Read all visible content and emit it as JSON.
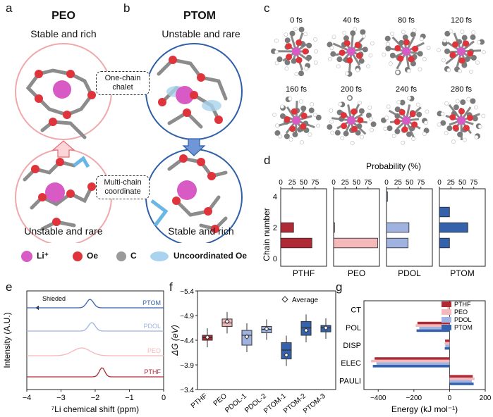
{
  "panel_labels": {
    "a": "a",
    "b": "b",
    "c": "c",
    "d": "d",
    "e": "e",
    "f": "f",
    "g": "g"
  },
  "panel_a": {
    "title": "PEO",
    "top_caption": "Stable and rich",
    "bottom_caption": "Unstable and rare"
  },
  "panel_b": {
    "title": "PTOM",
    "top_caption": "Unstable and rare",
    "bottom_caption": "Stable and rich"
  },
  "middle_labels": {
    "one_chain": "One-chain chalet",
    "multi_chain": "Multi-chain coordinate"
  },
  "legend_ab": {
    "li": "Li⁺",
    "oe": "Oe",
    "c": "C",
    "uncoord": "Uncoordinated Oe"
  },
  "colors": {
    "li": "#d85ac4",
    "oe": "#e0343c",
    "c": "#9a9a9a",
    "uncoord": "#a9d3ee",
    "peo_circle": "#f0a8ad",
    "ptom_circle": "#2e5fa8",
    "pthf": "#b02a35",
    "peo": "#f5b8bb",
    "pdol": "#9fb2e0",
    "ptom": "#3462ad"
  },
  "panel_c": {
    "times": [
      "0 fs",
      "40 fs",
      "80 fs",
      "120 fs",
      "160 fs",
      "200 fs",
      "240 fs",
      "280 fs"
    ]
  },
  "chart_data": [
    {
      "id": "d",
      "type": "bar",
      "title": "Probability (%)",
      "ylabel": "Chain number",
      "yticks": [
        "0",
        "2",
        "4"
      ],
      "xticks": [
        "0",
        "25",
        "50",
        "75"
      ],
      "xlim": [
        0,
        100
      ],
      "categories": [
        0,
        1,
        2,
        3,
        4
      ],
      "series": [
        {
          "name": "PTHF",
          "values": [
            0,
            68,
            28,
            0,
            0
          ]
        },
        {
          "name": "PEO",
          "values": [
            0,
            96,
            2,
            0,
            0
          ]
        },
        {
          "name": "PDOL",
          "values": [
            0,
            47,
            49,
            0,
            2
          ]
        },
        {
          "name": "PTOM",
          "values": [
            0,
            22,
            62,
            22,
            0
          ]
        }
      ]
    },
    {
      "id": "e",
      "type": "line",
      "xlabel": "⁷Li chemical shift (ppm)",
      "ylabel": "Intensity (A.U.)",
      "xlim": [
        -4,
        0
      ],
      "xticks": [
        "−4",
        "−3",
        "−2",
        "−1",
        "0"
      ],
      "arrow_label": "Shieded",
      "series": [
        {
          "name": "PTOM",
          "peak": -2.15
        },
        {
          "name": "PDOL",
          "peak": -2.1
        },
        {
          "name": "PEO",
          "peak": -2.4
        },
        {
          "name": "PTHF",
          "peak": -1.8
        }
      ]
    },
    {
      "id": "f",
      "type": "box",
      "ylabel": "ΔG (eV)",
      "ylim": [
        -3.4,
        -5.4
      ],
      "yticks": [
        "−5.4",
        "−4.9",
        "−4.4",
        "−3.9",
        "−3.4"
      ],
      "legend": "Average",
      "categories": [
        "PTHF",
        "PEO",
        "PDOL-1",
        "PDOL-2",
        "PTOM-1",
        "PTOM-2",
        "PTOM-3"
      ],
      "medians": [
        -4.45,
        -4.75,
        -4.5,
        -4.62,
        -4.2,
        -4.65,
        -4.65
      ],
      "q1": [
        -4.4,
        -4.68,
        -4.3,
        -4.55,
        -4.02,
        -4.5,
        -4.57
      ],
      "q3": [
        -4.5,
        -4.83,
        -4.6,
        -4.68,
        -4.35,
        -4.78,
        -4.7
      ],
      "means": [
        -4.46,
        -4.78,
        -4.47,
        -4.63,
        -4.1,
        -4.6,
        -4.65
      ]
    },
    {
      "id": "g",
      "type": "hbar",
      "xlabel": "Energy (kJ mol⁻¹)",
      "xlim": [
        -480,
        200
      ],
      "xticks": [
        "−400",
        "−200",
        "0",
        "200"
      ],
      "categories": [
        "CT",
        "POL",
        "DISP",
        "ELEC",
        "PAULI"
      ],
      "series": [
        {
          "name": "PTHF",
          "values": [
            -10,
            -180,
            -25,
            -420,
            130
          ]
        },
        {
          "name": "PEO",
          "values": [
            -12,
            -190,
            -28,
            -440,
            140
          ]
        },
        {
          "name": "PDOL",
          "values": [
            -9,
            -170,
            -24,
            -410,
            125
          ]
        },
        {
          "name": "PTOM",
          "values": [
            -11,
            -185,
            -27,
            -430,
            135
          ]
        }
      ]
    }
  ]
}
